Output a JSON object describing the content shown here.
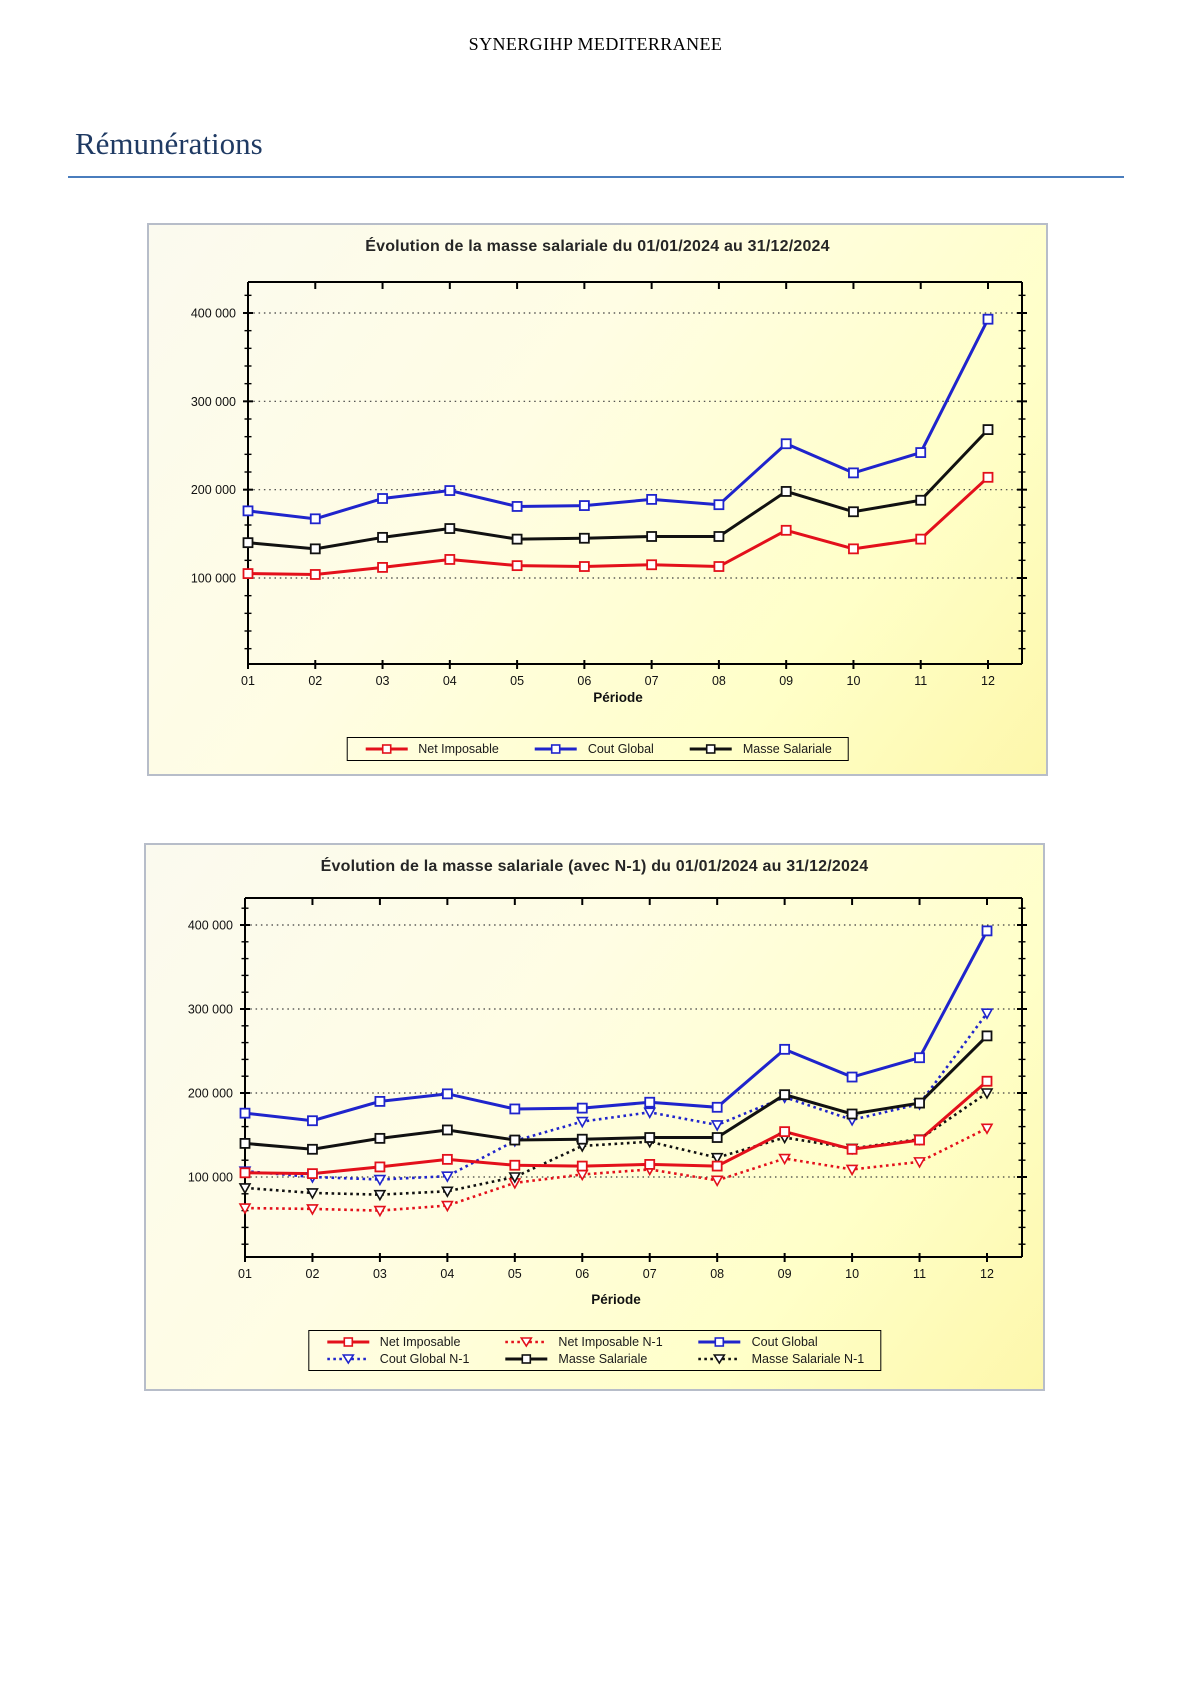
{
  "page": {
    "header": "SYNERGIHP MEDITERRANEE",
    "section_title": "Rémunérations",
    "accent_color": "#1f3a63",
    "rule_color": "#4a7dbd",
    "panel_background": "#ffffc8"
  },
  "chart_data": [
    {
      "type": "line",
      "title": "Évolution de la masse salariale du 01/01/2024 au 31/12/2024",
      "xlabel": "Période",
      "categories": [
        "01",
        "02",
        "03",
        "04",
        "05",
        "06",
        "07",
        "08",
        "09",
        "10",
        "11",
        "12"
      ],
      "ylim": [
        0,
        435000
      ],
      "yticks": [
        100000,
        200000,
        300000,
        400000
      ],
      "ytick_labels": [
        "100 000",
        "200 000",
        "300 000",
        "400 000"
      ],
      "grid": "horizontal-dotted",
      "legend_position": "bottom",
      "series": [
        {
          "name": "Net Imposable",
          "color": "#e3101b",
          "line": "solid",
          "marker": "square",
          "values": [
            105000,
            104000,
            112000,
            121000,
            114000,
            113000,
            115000,
            113000,
            154000,
            133000,
            144000,
            214000
          ]
        },
        {
          "name": "Cout Global",
          "color": "#1f24cc",
          "line": "solid",
          "marker": "square",
          "values": [
            176000,
            167000,
            190000,
            199000,
            181000,
            182000,
            189000,
            183000,
            252000,
            219000,
            242000,
            393000
          ]
        },
        {
          "name": "Masse Salariale",
          "color": "#111111",
          "line": "solid",
          "marker": "square",
          "values": [
            140000,
            133000,
            146000,
            156000,
            144000,
            145000,
            147000,
            147000,
            198000,
            175000,
            188000,
            268000
          ]
        }
      ]
    },
    {
      "type": "line",
      "title": "Évolution de la masse salariale (avec N-1) du 01/01/2024 au 31/12/2024",
      "xlabel": "Période",
      "categories": [
        "01",
        "02",
        "03",
        "04",
        "05",
        "06",
        "07",
        "08",
        "09",
        "10",
        "11",
        "12"
      ],
      "ylim": [
        0,
        433000
      ],
      "yticks": [
        100000,
        200000,
        300000,
        400000
      ],
      "ytick_labels": [
        "100 000",
        "200 000",
        "300 000",
        "400 000"
      ],
      "grid": "horizontal-dotted",
      "legend_position": "bottom",
      "series": [
        {
          "name": "Net Imposable",
          "color": "#e3101b",
          "line": "solid",
          "marker": "square",
          "values": [
            105000,
            104000,
            112000,
            121000,
            114000,
            113000,
            115000,
            113000,
            154000,
            133000,
            144000,
            214000
          ]
        },
        {
          "name": "Net Imposable N-1",
          "color": "#e3101b",
          "line": "dotted",
          "marker": "triangle-down",
          "values": [
            63000,
            62000,
            60000,
            66000,
            93000,
            103000,
            109000,
            96000,
            122000,
            109000,
            118000,
            158000
          ]
        },
        {
          "name": "Cout Global",
          "color": "#1f24cc",
          "line": "solid",
          "marker": "square",
          "values": [
            176000,
            167000,
            190000,
            199000,
            181000,
            182000,
            189000,
            183000,
            252000,
            219000,
            242000,
            393000
          ]
        },
        {
          "name": "Cout Global N-1",
          "color": "#1f24cc",
          "line": "dotted",
          "marker": "triangle-down",
          "values": [
            107000,
            100000,
            97000,
            101000,
            143000,
            166000,
            177000,
            162000,
            195000,
            168000,
            187000,
            295000
          ]
        },
        {
          "name": "Masse Salariale",
          "color": "#111111",
          "line": "solid",
          "marker": "square",
          "values": [
            140000,
            133000,
            146000,
            156000,
            144000,
            145000,
            147000,
            147000,
            198000,
            175000,
            188000,
            268000
          ]
        },
        {
          "name": "Masse Salariale N-1",
          "color": "#111111",
          "line": "dotted",
          "marker": "triangle-down",
          "values": [
            87000,
            81000,
            79000,
            83000,
            100000,
            137000,
            142000,
            123000,
            147000,
            134000,
            145000,
            200000
          ]
        }
      ]
    }
  ]
}
